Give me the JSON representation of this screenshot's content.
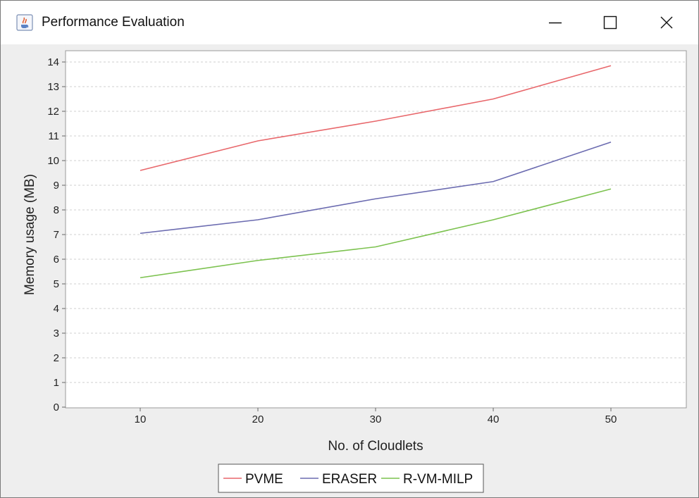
{
  "window": {
    "title": "Performance Evaluation",
    "icon": "java-coffee-cup-icon",
    "controls": {
      "minimize": "minimize-icon",
      "maximize": "maximize-icon",
      "close": "close-icon"
    }
  },
  "chart_data": {
    "type": "line",
    "title": "",
    "xlabel": "No. of Cloudlets",
    "ylabel": "Memory usage (MB)",
    "categories": [
      "10",
      "20",
      "30",
      "40",
      "50"
    ],
    "ylim": [
      0,
      14.5
    ],
    "yticks": [
      0,
      1,
      2,
      3,
      4,
      5,
      6,
      7,
      8,
      9,
      10,
      11,
      12,
      13,
      14
    ],
    "grid": true,
    "legend_position": "bottom-center",
    "series": [
      {
        "name": "PVME",
        "color": "#e8676b",
        "values": [
          9.6,
          10.8,
          11.6,
          12.5,
          13.85
        ]
      },
      {
        "name": "ERASER",
        "color": "#6b6bb0",
        "values": [
          7.05,
          7.6,
          8.45,
          9.15,
          10.75
        ]
      },
      {
        "name": "R-VM-MILP",
        "color": "#7cc24f",
        "values": [
          5.25,
          5.95,
          6.5,
          7.6,
          8.85
        ]
      }
    ]
  }
}
